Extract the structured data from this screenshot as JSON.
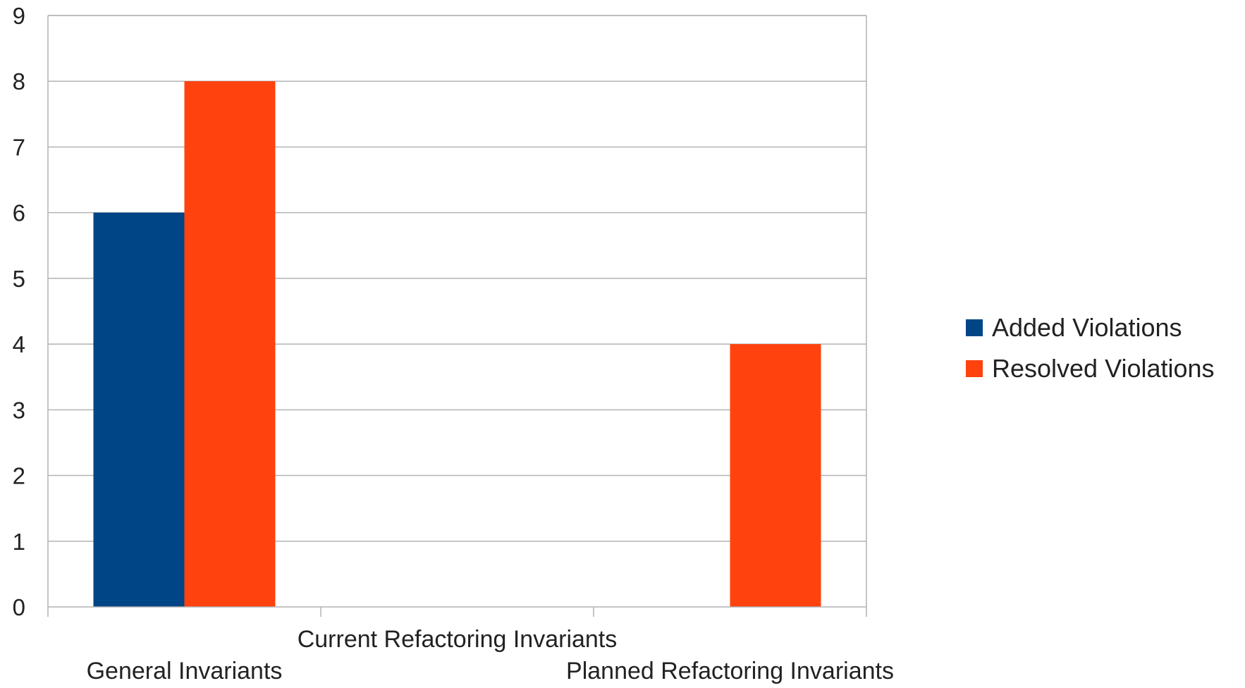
{
  "chart_data": {
    "type": "bar",
    "categories": [
      "General Invariants",
      "Current Refactoring Invariants",
      "Planned Refactoring Invariants"
    ],
    "series": [
      {
        "name": "Added Violations",
        "color": "#004586",
        "values": [
          6,
          0,
          0
        ]
      },
      {
        "name": "Resolved Violations",
        "color": "#ff420e",
        "values": [
          8,
          0,
          4
        ]
      }
    ],
    "ylim": [
      0,
      9
    ],
    "yticks": [
      0,
      1,
      2,
      3,
      4,
      5,
      6,
      7,
      8,
      9
    ],
    "grid": true,
    "legend_position": "right",
    "title": "",
    "xlabel": "",
    "ylabel": ""
  }
}
